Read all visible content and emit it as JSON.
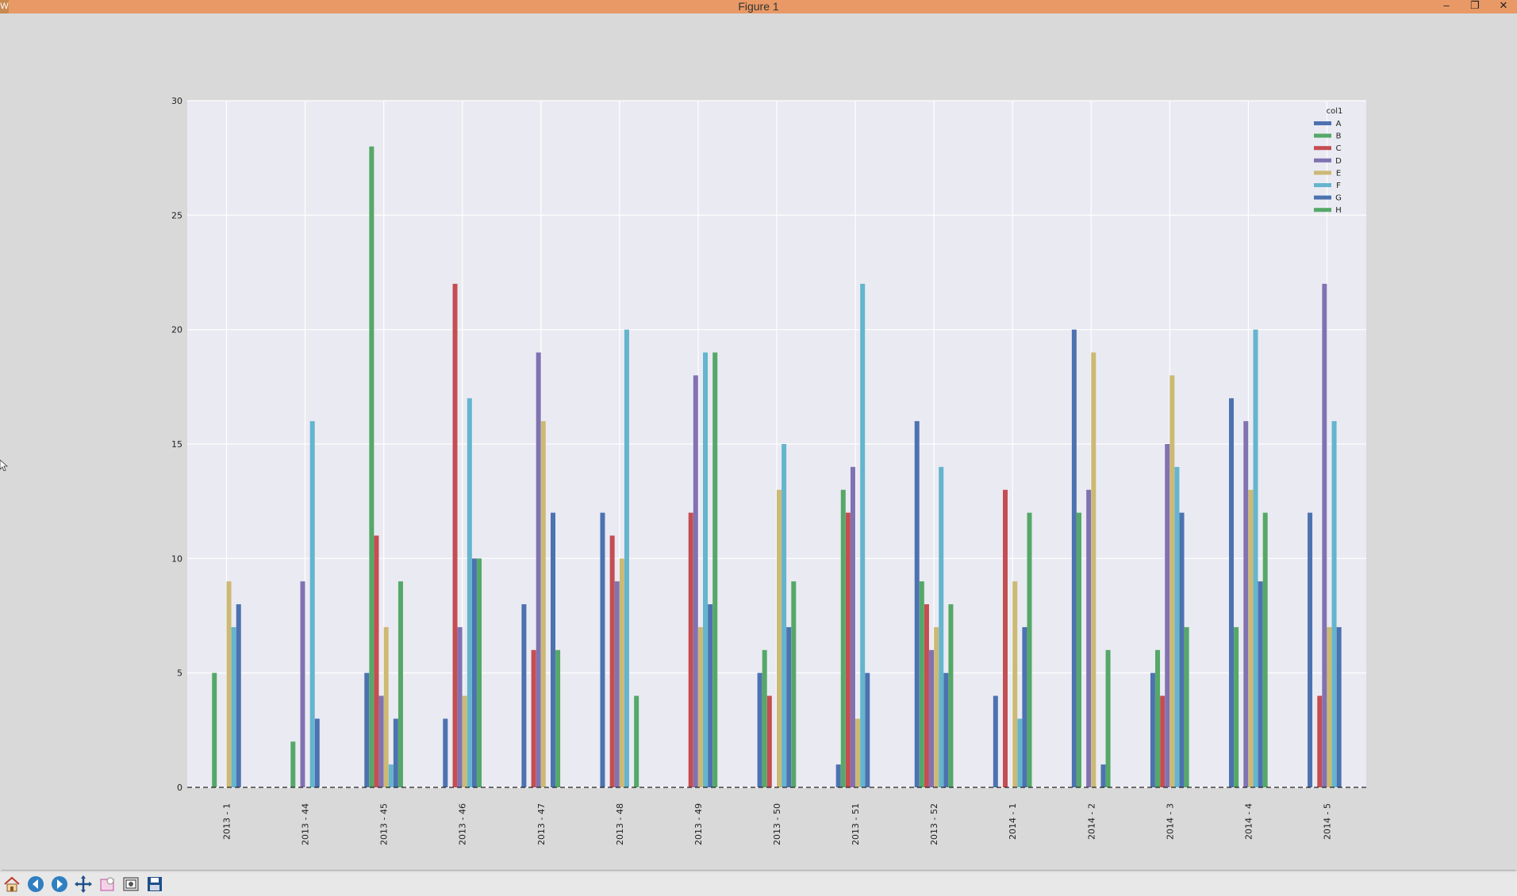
{
  "window": {
    "title": "Figure 1",
    "app_icon": "W",
    "controls": [
      "minimize-icon",
      "restore-icon",
      "close-icon"
    ]
  },
  "toolbar": {
    "buttons": [
      "home-icon",
      "back-icon",
      "forward-icon",
      "pan-icon",
      "zoom-icon",
      "configure-subplots-icon",
      "save-icon"
    ]
  },
  "chart_data": {
    "type": "bar",
    "categories": [
      "2013 - 1",
      "2013 - 44",
      "2013 - 45",
      "2013 - 46",
      "2013 - 47",
      "2013 - 48",
      "2013 - 49",
      "2013 - 50",
      "2013 - 51",
      "2013 - 52",
      "2014 - 1",
      "2014 - 2",
      "2014 - 3",
      "2014 - 4",
      "2014 - 5"
    ],
    "ylim": [
      0,
      30
    ],
    "yticks": [
      0,
      5,
      10,
      15,
      20,
      25,
      30
    ],
    "grid": true,
    "legend_title": "col1",
    "legend_position": "top-right",
    "baseline": "dashed at y=0",
    "series": [
      {
        "name": "A",
        "color": "#4c72b0",
        "values": [
          0,
          0,
          5,
          3,
          8,
          12,
          0,
          5,
          1,
          16,
          4,
          20,
          5,
          17,
          12
        ]
      },
      {
        "name": "B",
        "color": "#55a868",
        "values": [
          5,
          2,
          28,
          0,
          0,
          0,
          0,
          6,
          13,
          9,
          0,
          12,
          6,
          7,
          0
        ]
      },
      {
        "name": "C",
        "color": "#c44e52",
        "values": [
          0,
          0,
          11,
          22,
          6,
          11,
          12,
          4,
          12,
          8,
          13,
          0,
          4,
          0,
          4
        ]
      },
      {
        "name": "D",
        "color": "#8172b2",
        "values": [
          0,
          9,
          4,
          7,
          19,
          9,
          18,
          0,
          14,
          6,
          0,
          13,
          15,
          16,
          22
        ]
      },
      {
        "name": "E",
        "color": "#ccb974",
        "values": [
          9,
          0,
          7,
          4,
          16,
          10,
          7,
          13,
          3,
          7,
          9,
          19,
          18,
          13,
          7
        ]
      },
      {
        "name": "F",
        "color": "#64b5cd",
        "values": [
          7,
          16,
          1,
          17,
          0,
          20,
          19,
          15,
          22,
          14,
          3,
          0,
          14,
          20,
          16
        ]
      },
      {
        "name": "G",
        "color": "#4c72b0",
        "values": [
          8,
          3,
          3,
          10,
          12,
          0,
          8,
          7,
          5,
          5,
          7,
          1,
          12,
          9,
          7
        ]
      },
      {
        "name": "H",
        "color": "#55a868",
        "values": [
          0,
          0,
          9,
          10,
          6,
          4,
          19,
          9,
          0,
          8,
          12,
          6,
          7,
          12,
          0
        ]
      }
    ]
  }
}
